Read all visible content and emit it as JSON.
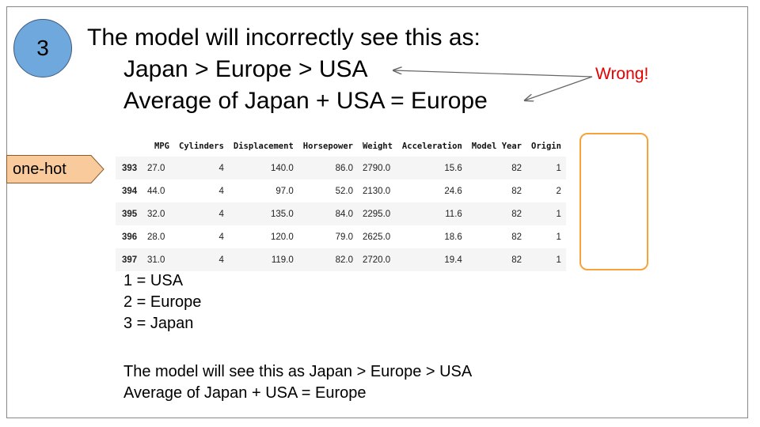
{
  "step_number": "3",
  "title": "The model will incorrectly see this as:",
  "statement_1": "Japan > Europe > USA",
  "statement_2": "Average of Japan + USA = Europe",
  "wrong_label": "Wrong!",
  "one_hot_label": "one-hot",
  "table": {
    "columns": [
      "",
      "MPG",
      "Cylinders",
      "Displacement",
      "Horsepower",
      "Weight",
      "Acceleration",
      "Model Year",
      "Origin"
    ],
    "rows": [
      [
        "393",
        "27.0",
        "4",
        "140.0",
        "86.0",
        "2790.0",
        "15.6",
        "82",
        "1"
      ],
      [
        "394",
        "44.0",
        "4",
        "97.0",
        "52.0",
        "2130.0",
        "24.6",
        "82",
        "2"
      ],
      [
        "395",
        "32.0",
        "4",
        "135.0",
        "84.0",
        "2295.0",
        "11.6",
        "82",
        "1"
      ],
      [
        "396",
        "28.0",
        "4",
        "120.0",
        "79.0",
        "2625.0",
        "18.6",
        "82",
        "1"
      ],
      [
        "397",
        "31.0",
        "4",
        "119.0",
        "82.0",
        "2720.0",
        "19.4",
        "82",
        "1"
      ]
    ]
  },
  "legend": [
    "1 = USA",
    "2 = Europe",
    "3 = Japan"
  ],
  "summary": [
    "The model will see this as Japan > Europe > USA",
    "Average of Japan + USA = Europe"
  ],
  "colors": {
    "circle_fill": "#6fa8dc",
    "one_hot_fill": "#f9cb9c",
    "highlight_border": "#f6a33b",
    "wrong_text": "#e60000"
  }
}
